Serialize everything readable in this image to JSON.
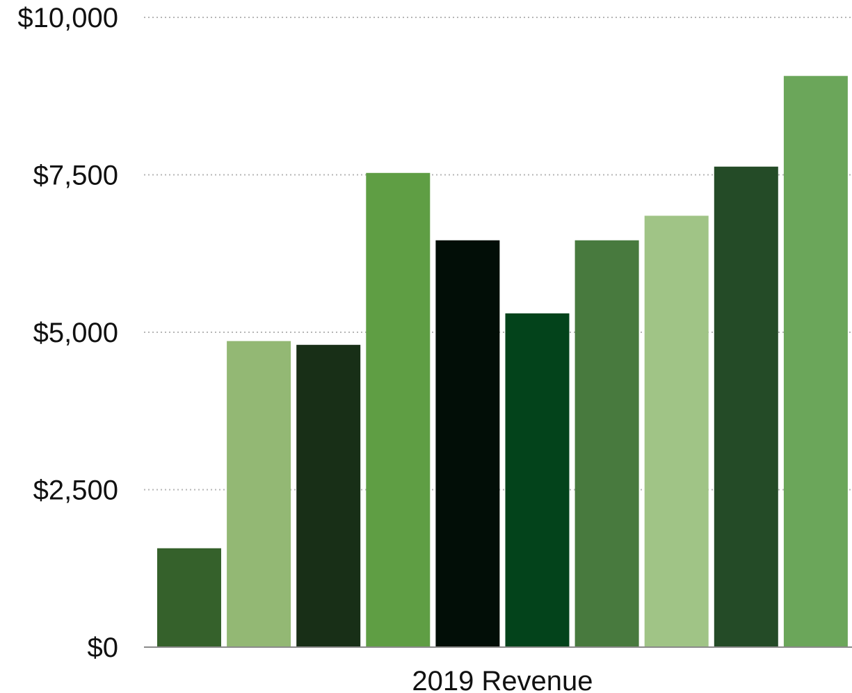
{
  "chart_data": {
    "type": "bar",
    "title": "",
    "xlabel": "",
    "ylabel": "",
    "categories": [
      "2019 Revenue"
    ],
    "series": [
      {
        "values": [
          1570
        ],
        "color": "#35612b"
      },
      {
        "values": [
          4860
        ],
        "color": "#93b874"
      },
      {
        "values": [
          4800
        ],
        "color": "#182f17"
      },
      {
        "values": [
          7530
        ],
        "color": "#5f9e44"
      },
      {
        "values": [
          6460
        ],
        "color": "#020e07"
      },
      {
        "values": [
          5300
        ],
        "color": "#03431b"
      },
      {
        "values": [
          6460
        ],
        "color": "#487a3e"
      },
      {
        "values": [
          6850
        ],
        "color": "#a0c486"
      },
      {
        "values": [
          7630
        ],
        "color": "#244b27"
      },
      {
        "values": [
          9070
        ],
        "color": "#6ba65a"
      }
    ],
    "ylim": [
      0,
      10000
    ],
    "yticks": [
      0,
      2500,
      5000,
      7500,
      10000
    ],
    "ytick_labels": [
      "$0",
      "$2,500",
      "$5,000",
      "$7,500",
      "$10,000"
    ],
    "grid": true,
    "legend": "none"
  }
}
